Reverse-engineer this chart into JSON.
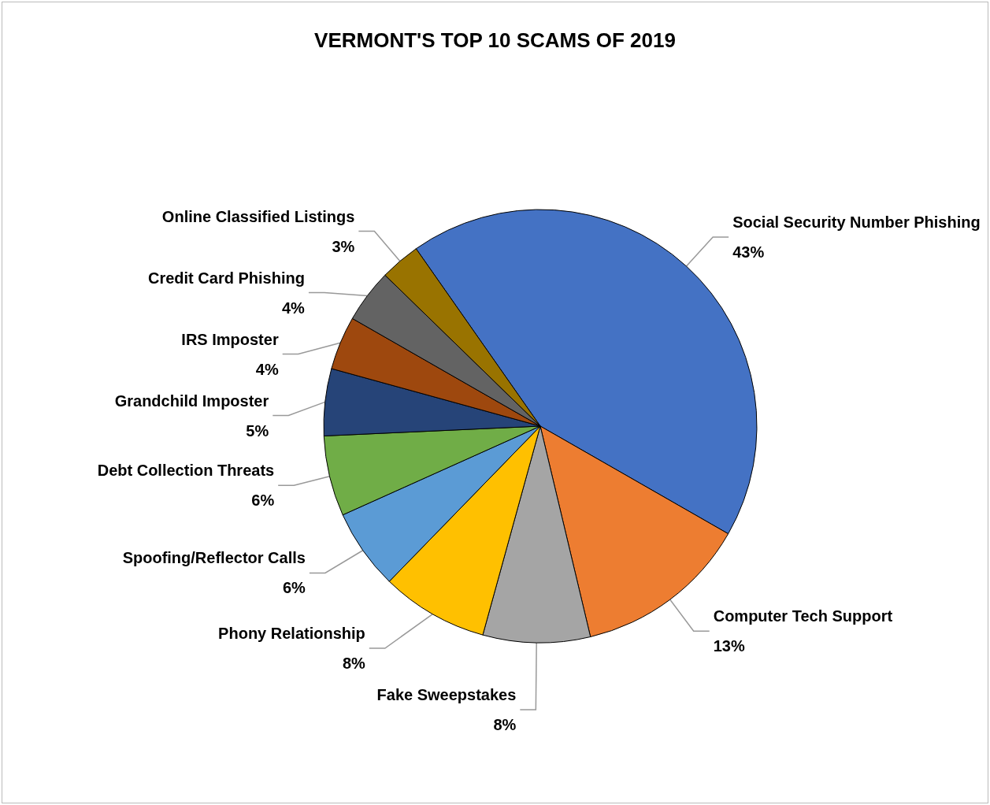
{
  "chart_data": {
    "type": "pie",
    "title": "VERMONT'S TOP 10 SCAMS OF 2019",
    "categories": [
      "Social Security Number Phishing",
      "Computer Tech Support",
      "Fake Sweepstakes",
      "Phony Relationship",
      "Spoofing/Reflector Calls",
      "Debt Collection Threats",
      "Grandchild Imposter",
      "IRS Imposter",
      "Credit Card Phishing",
      "Online Classified Listings"
    ],
    "values": [
      43,
      13,
      8,
      8,
      6,
      6,
      5,
      4,
      4,
      3
    ],
    "colors": [
      "#4472c4",
      "#ed7d31",
      "#a5a5a5",
      "#ffc000",
      "#5b9bd5",
      "#70ad47",
      "#264478",
      "#9e480e",
      "#636363",
      "#997300"
    ],
    "value_labels": [
      "43%",
      "13%",
      "8%",
      "8%",
      "6%",
      "6%",
      "5%",
      "4%",
      "4%",
      "3%"
    ],
    "legend": false
  }
}
